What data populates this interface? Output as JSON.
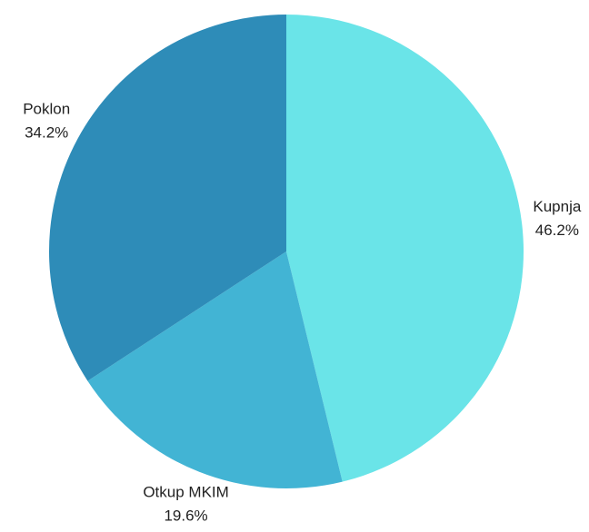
{
  "chart_data": {
    "type": "pie",
    "categories": [
      "Kupnja",
      "Otkup MKIM",
      "Poklon"
    ],
    "values": [
      46.2,
      19.6,
      34.2
    ],
    "value_labels": [
      "46.2%",
      "19.6%",
      "34.2%"
    ],
    "colors": [
      "#6ae4e8",
      "#42b4d4",
      "#2e8cb8"
    ]
  }
}
